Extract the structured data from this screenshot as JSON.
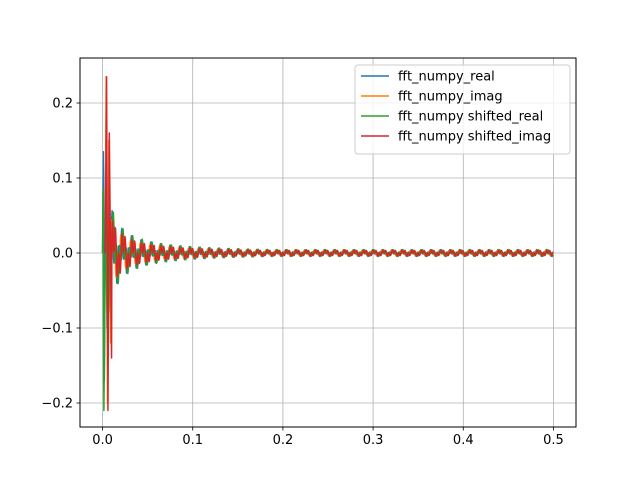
{
  "chart_data": {
    "type": "line",
    "title": "",
    "xlabel": "",
    "ylabel": "",
    "xlim": [
      -0.025,
      0.525
    ],
    "ylim": [
      -0.232,
      0.26
    ],
    "grid": true,
    "legend_position": "top-right",
    "x_ticks": [
      {
        "value": 0.0,
        "label": "0.0"
      },
      {
        "value": 0.1,
        "label": "0.1"
      },
      {
        "value": 0.2,
        "label": "0.2"
      },
      {
        "value": 0.3,
        "label": "0.3"
      },
      {
        "value": 0.4,
        "label": "0.4"
      },
      {
        "value": 0.5,
        "label": "0.5"
      }
    ],
    "y_ticks": [
      {
        "value": -0.2,
        "label": "−0.2"
      },
      {
        "value": -0.1,
        "label": "−0.1"
      },
      {
        "value": 0.0,
        "label": "0.0"
      },
      {
        "value": 0.1,
        "label": "0.1"
      },
      {
        "value": 0.2,
        "label": "0.2"
      }
    ],
    "series": [
      {
        "name": "fft_numpy_real",
        "color": "#1f77b4",
        "phase": 0.0,
        "amp_scale": 1.0,
        "spikes": [
          [
            0.0,
            0.0
          ],
          [
            0.001,
            0.135
          ],
          [
            0.002,
            -0.17
          ],
          [
            0.0035,
            0.12
          ],
          [
            0.005,
            -0.1
          ]
        ]
      },
      {
        "name": "fft_numpy_imag",
        "color": "#ff7f0e",
        "phase": 1.2,
        "amp_scale": 0.95,
        "spikes": [
          [
            0.003,
            0.0
          ],
          [
            0.004,
            0.235
          ],
          [
            0.0055,
            -0.2
          ],
          [
            0.007,
            0.15
          ],
          [
            0.009,
            -0.12
          ]
        ]
      },
      {
        "name": "fft_numpy shifted_real",
        "color": "#2ca02c",
        "phase": 2.4,
        "amp_scale": 1.05,
        "spikes": [
          [
            0.0,
            0.0
          ],
          [
            0.0005,
            0.085
          ],
          [
            0.0015,
            -0.21
          ],
          [
            0.0035,
            0.06
          ],
          [
            0.006,
            -0.15
          ]
        ]
      },
      {
        "name": "fft_numpy shifted_imag",
        "color": "#d62728",
        "phase": 3.6,
        "amp_scale": 1.0,
        "spikes": [
          [
            0.003,
            0.0
          ],
          [
            0.0045,
            0.235
          ],
          [
            0.006,
            -0.21
          ],
          [
            0.0075,
            0.16
          ],
          [
            0.01,
            -0.14
          ]
        ]
      }
    ],
    "envelope": {
      "peak": 0.07,
      "decay_center": 0.012,
      "osc_period": 0.0107,
      "x_max": 0.5
    }
  }
}
